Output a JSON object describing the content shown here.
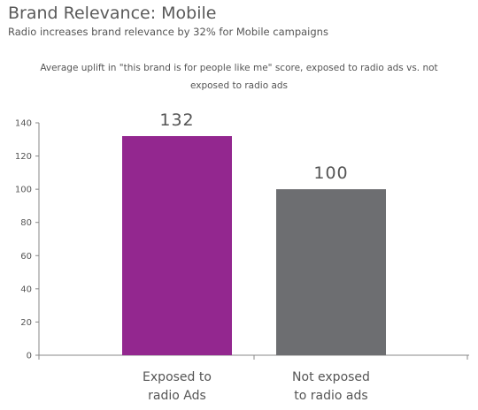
{
  "title": "Brand Relevance: Mobile",
  "subtitle": "Radio increases brand relevance by 32% for Mobile campaigns",
  "description_lines": [
    "Average uplift in \"this brand is for people like me\" score, exposed to radio ads vs. not",
    "exposed to radio ads"
  ],
  "colors": {
    "exposed": "#93278f",
    "not_exposed": "#6d6e71",
    "axis": "#888888"
  },
  "chart_data": {
    "type": "bar",
    "categories": [
      [
        "Exposed to",
        "radio Ads"
      ],
      [
        "Not exposed",
        "to radio ads"
      ]
    ],
    "values": [
      132,
      100
    ],
    "data_labels": [
      "132",
      "100"
    ],
    "ylim": [
      0,
      140
    ],
    "yticks": [
      0,
      20,
      40,
      60,
      80,
      100,
      120,
      140
    ],
    "grid": false,
    "legend": "none"
  }
}
